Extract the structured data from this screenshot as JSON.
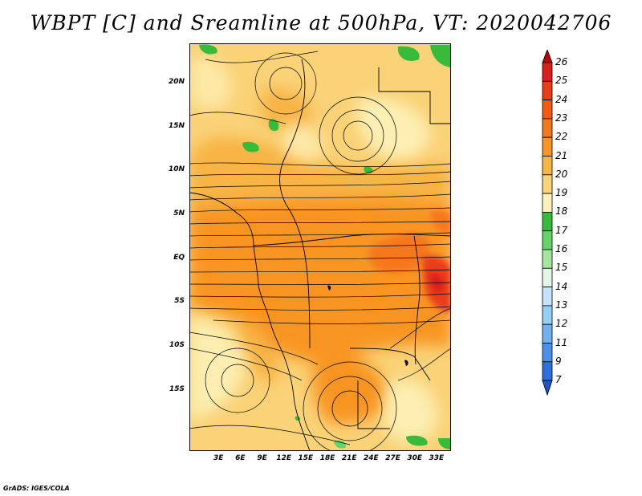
{
  "title": "WBPT [C] and Sreamline at 500hPa, VT: 2020042706",
  "footer": "GrADS: IGES/COLA",
  "map": {
    "lat_range": [
      -22,
      24.5
    ],
    "lon_range": [
      -1,
      35
    ],
    "lat_ticks": [
      {
        "value": 20,
        "label": "20N"
      },
      {
        "value": 15,
        "label": "15N"
      },
      {
        "value": 10,
        "label": "10N"
      },
      {
        "value": 5,
        "label": "5N"
      },
      {
        "value": 0,
        "label": "EQ"
      },
      {
        "value": -5,
        "label": "5S"
      },
      {
        "value": -10,
        "label": "10S"
      },
      {
        "value": -15,
        "label": "15S"
      }
    ],
    "lon_ticks": [
      {
        "value": 3,
        "label": "3E"
      },
      {
        "value": 6,
        "label": "6E"
      },
      {
        "value": 9,
        "label": "9E"
      },
      {
        "value": 12,
        "label": "12E"
      },
      {
        "value": 15,
        "label": "15E"
      },
      {
        "value": 18,
        "label": "18E"
      },
      {
        "value": 21,
        "label": "21E"
      },
      {
        "value": 24,
        "label": "24E"
      },
      {
        "value": 27,
        "label": "27E"
      },
      {
        "value": 30,
        "label": "30E"
      },
      {
        "value": 33,
        "label": "33E"
      }
    ]
  },
  "colorbar": {
    "levels": [
      "26",
      "25",
      "24",
      "23",
      "22",
      "21",
      "20",
      "19",
      "18",
      "17",
      "16",
      "15",
      "14",
      "13",
      "12",
      "11",
      "9",
      "7"
    ],
    "colors": [
      "#c00000",
      "#d81f1a",
      "#ea3d1a",
      "#f55a12",
      "#f6781d",
      "#f89524",
      "#f8b444",
      "#fad277",
      "#fdf2ba",
      "#38bb3a",
      "#66d369",
      "#a5e69f",
      "#e2f7e6",
      "#c4e3fb",
      "#96cff6",
      "#70b2ef",
      "#4d90e7",
      "#2f6fdc",
      "#1e52c8"
    ]
  }
}
